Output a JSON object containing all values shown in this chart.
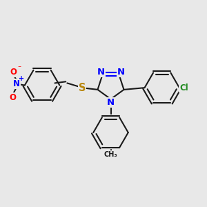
{
  "bg_color": "#e8e8e8",
  "bond_color": "#1a1a1a",
  "bw": 1.5,
  "dbo": 0.05,
  "fs": 8.5,
  "fig_size": [
    3.0,
    3.0
  ],
  "dpi": 100,
  "xlim": [
    -2.6,
    3.0
  ],
  "ylim": [
    -2.5,
    2.0
  ]
}
